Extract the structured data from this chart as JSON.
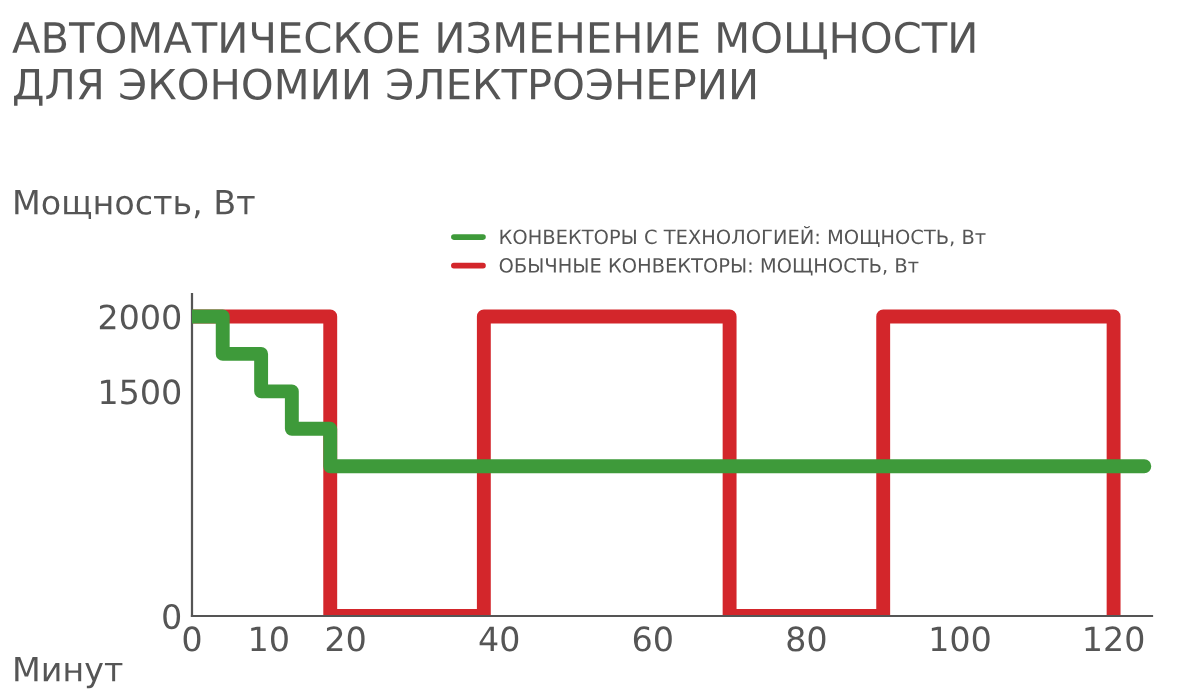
{
  "chart_data": {
    "type": "step",
    "title": "АВТОМАТИЧЕСКОЕ ИЗМЕНЕНИЕ МОЩНОСТИ\nДЛЯ ЭКОНОМИИ ЭЛЕКТРОЭНЕРИИ",
    "xlabel": "Минут",
    "ylabel": "Мощность, Вт",
    "series": [
      {
        "name": "КОНВЕКТОРЫ С ТЕХНОЛОГИЕЙ: МОЩНОСТЬ, Вт",
        "color": "#3e9a3a",
        "x": [
          0,
          4,
          9,
          13,
          18,
          124
        ],
        "values": [
          2000,
          1750,
          1500,
          1250,
          1000,
          1000
        ]
      },
      {
        "name": "ОБЫЧНЫЕ КОНВЕКТОРЫ: МОЩНОСТЬ, Вт",
        "color": "#d3262b",
        "x": [
          0,
          18,
          38,
          70,
          90,
          120
        ],
        "values": [
          2000,
          0,
          2000,
          0,
          2000,
          0
        ]
      }
    ],
    "xlim": [
      0,
      125
    ],
    "xticks": [
      0,
      10,
      20,
      40,
      60,
      80,
      100,
      120
    ],
    "ylim": [
      0,
      2150
    ],
    "yticks": [
      0,
      1500,
      2000
    ],
    "grid": false,
    "legend": "top",
    "line_style": "solid",
    "marker": "none"
  }
}
